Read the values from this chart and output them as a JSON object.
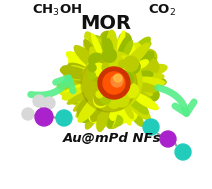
{
  "label_methanol": "CH$_3$OH",
  "label_co2": "CO$_2$",
  "label_mor": "MOR",
  "label_nanoflower": "Au@mPd NFs",
  "bg_color": "#ffffff",
  "arrow_color": "#55ee88",
  "text_color": "#111111",
  "purple_color": "#aa22cc",
  "teal_color": "#22ccbb",
  "white_color": "#d8d8d8",
  "nanoflower_yellow": "#ccdd00",
  "nanoflower_core": "#cc3300",
  "nanoflower_core2": "#ff5500",
  "nanoflower_highlight": "#ffcc44",
  "fig_width": 2.12,
  "fig_height": 1.89,
  "dpi": 100
}
